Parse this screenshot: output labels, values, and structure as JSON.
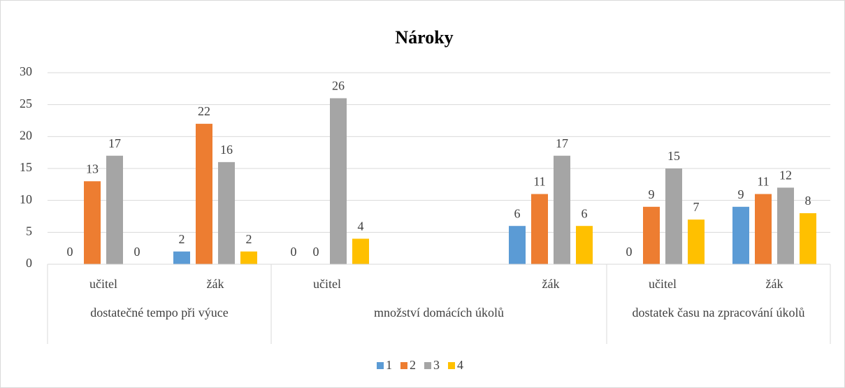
{
  "chart_data": {
    "type": "bar",
    "title": "Nároky",
    "groups": [
      {
        "label": "dostatečné tempo při výuce",
        "categories": [
          "učitel",
          "žák"
        ]
      },
      {
        "label": "množství domácích úkolů",
        "categories": [
          "učitel",
          null,
          "žák"
        ]
      },
      {
        "label": "dostatek času na zpracování úkolů",
        "categories": [
          "učitel",
          "žák"
        ]
      }
    ],
    "series": [
      {
        "name": "1",
        "color": "#5b9bd5",
        "values": [
          0,
          2,
          0,
          null,
          6,
          0,
          9
        ]
      },
      {
        "name": "2",
        "color": "#ed7d31",
        "values": [
          13,
          22,
          0,
          null,
          11,
          9,
          11
        ]
      },
      {
        "name": "3",
        "color": "#a5a5a5",
        "values": [
          17,
          16,
          26,
          null,
          17,
          15,
          12
        ]
      },
      {
        "name": "4",
        "color": "#ffc000",
        "values": [
          0,
          2,
          4,
          null,
          6,
          7,
          8
        ]
      }
    ],
    "ylim": [
      0,
      30
    ],
    "yticks": [
      0,
      5,
      10,
      15,
      20,
      25,
      30
    ],
    "grid": true,
    "legend": "bottom"
  }
}
